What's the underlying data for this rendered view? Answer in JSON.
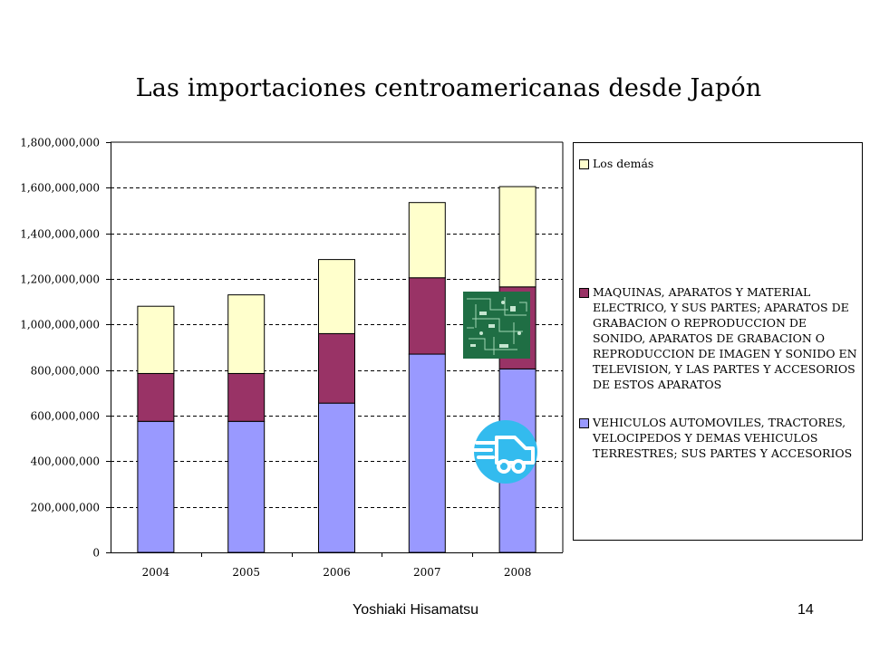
{
  "chart_data": {
    "type": "bar",
    "stacked": true,
    "title": "Las importaciones centroamericanas desde Japón",
    "categories": [
      "2004",
      "2005",
      "2006",
      "2007",
      "2008"
    ],
    "series": [
      {
        "name": "VEHICULOS AUTOMOVILES, TRACTORES, VELOCIPEDOS Y DEMAS VEHICULOS TERRESTRES; SUS PARTES Y ACCESORIOS",
        "color": "#9999ff",
        "values": [
          575000000,
          575000000,
          655000000,
          870000000,
          805000000
        ]
      },
      {
        "name": "MAQUINAS, APARATOS Y MATERIAL ELECTRICO, Y SUS PARTES; APARATOS DE GRABACION O REPRODUCCION DE SONIDO, APARATOS DE GRABACION O REPRODUCCION DE IMAGEN Y SONIDO EN TELEVISION, Y LAS PARTES Y ACCESORIOS DE ESTOS APARATOS",
        "color": "#993366",
        "values": [
          210000000,
          210000000,
          305000000,
          335000000,
          360000000
        ]
      },
      {
        "name": "Los demás",
        "color": "#ffffcc",
        "values": [
          295000000,
          345000000,
          325000000,
          330000000,
          440000000
        ]
      }
    ],
    "ylim": [
      0,
      1800000000
    ],
    "yticks": [
      "0",
      "200,000,000",
      "400,000,000",
      "600,000,000",
      "800,000,000",
      "1,000,000,000",
      "1,200,000,000",
      "1,400,000,000",
      "1,600,000,000",
      "1,800,000,000"
    ],
    "ytick_values": [
      0,
      200000000,
      400000000,
      600000000,
      800000000,
      1000000000,
      1200000000,
      1400000000,
      1600000000,
      1800000000
    ],
    "grid": "horizontal dashed",
    "legend_position": "right"
  },
  "legend": {
    "items": [
      {
        "label": "Los demás",
        "color": "#ffffcc"
      },
      {
        "label": "MAQUINAS, APARATOS Y MATERIAL ELECTRICO, Y SUS PARTES; APARATOS DE GRABACION O REPRODUCCION DE SONIDO, APARATOS DE GRABACION O REPRODUCCION DE IMAGEN Y SONIDO EN TELEVISION, Y LAS PARTES Y ACCESORIOS DE ESTOS APARATOS",
        "color": "#993366"
      },
      {
        "label": "VEHICULOS AUTOMOVILES, TRACTORES, VELOCIPEDOS Y DEMAS VEHICULOS TERRESTRES; SUS PARTES Y ACCESORIOS",
        "color": "#9999ff"
      }
    ]
  },
  "footer": {
    "author": "Yoshiaki Hisamatsu",
    "page": "14"
  },
  "icons": {
    "chip": "circuit-board-icon",
    "car": "fast-car-icon",
    "car_color": "#33bbee"
  }
}
